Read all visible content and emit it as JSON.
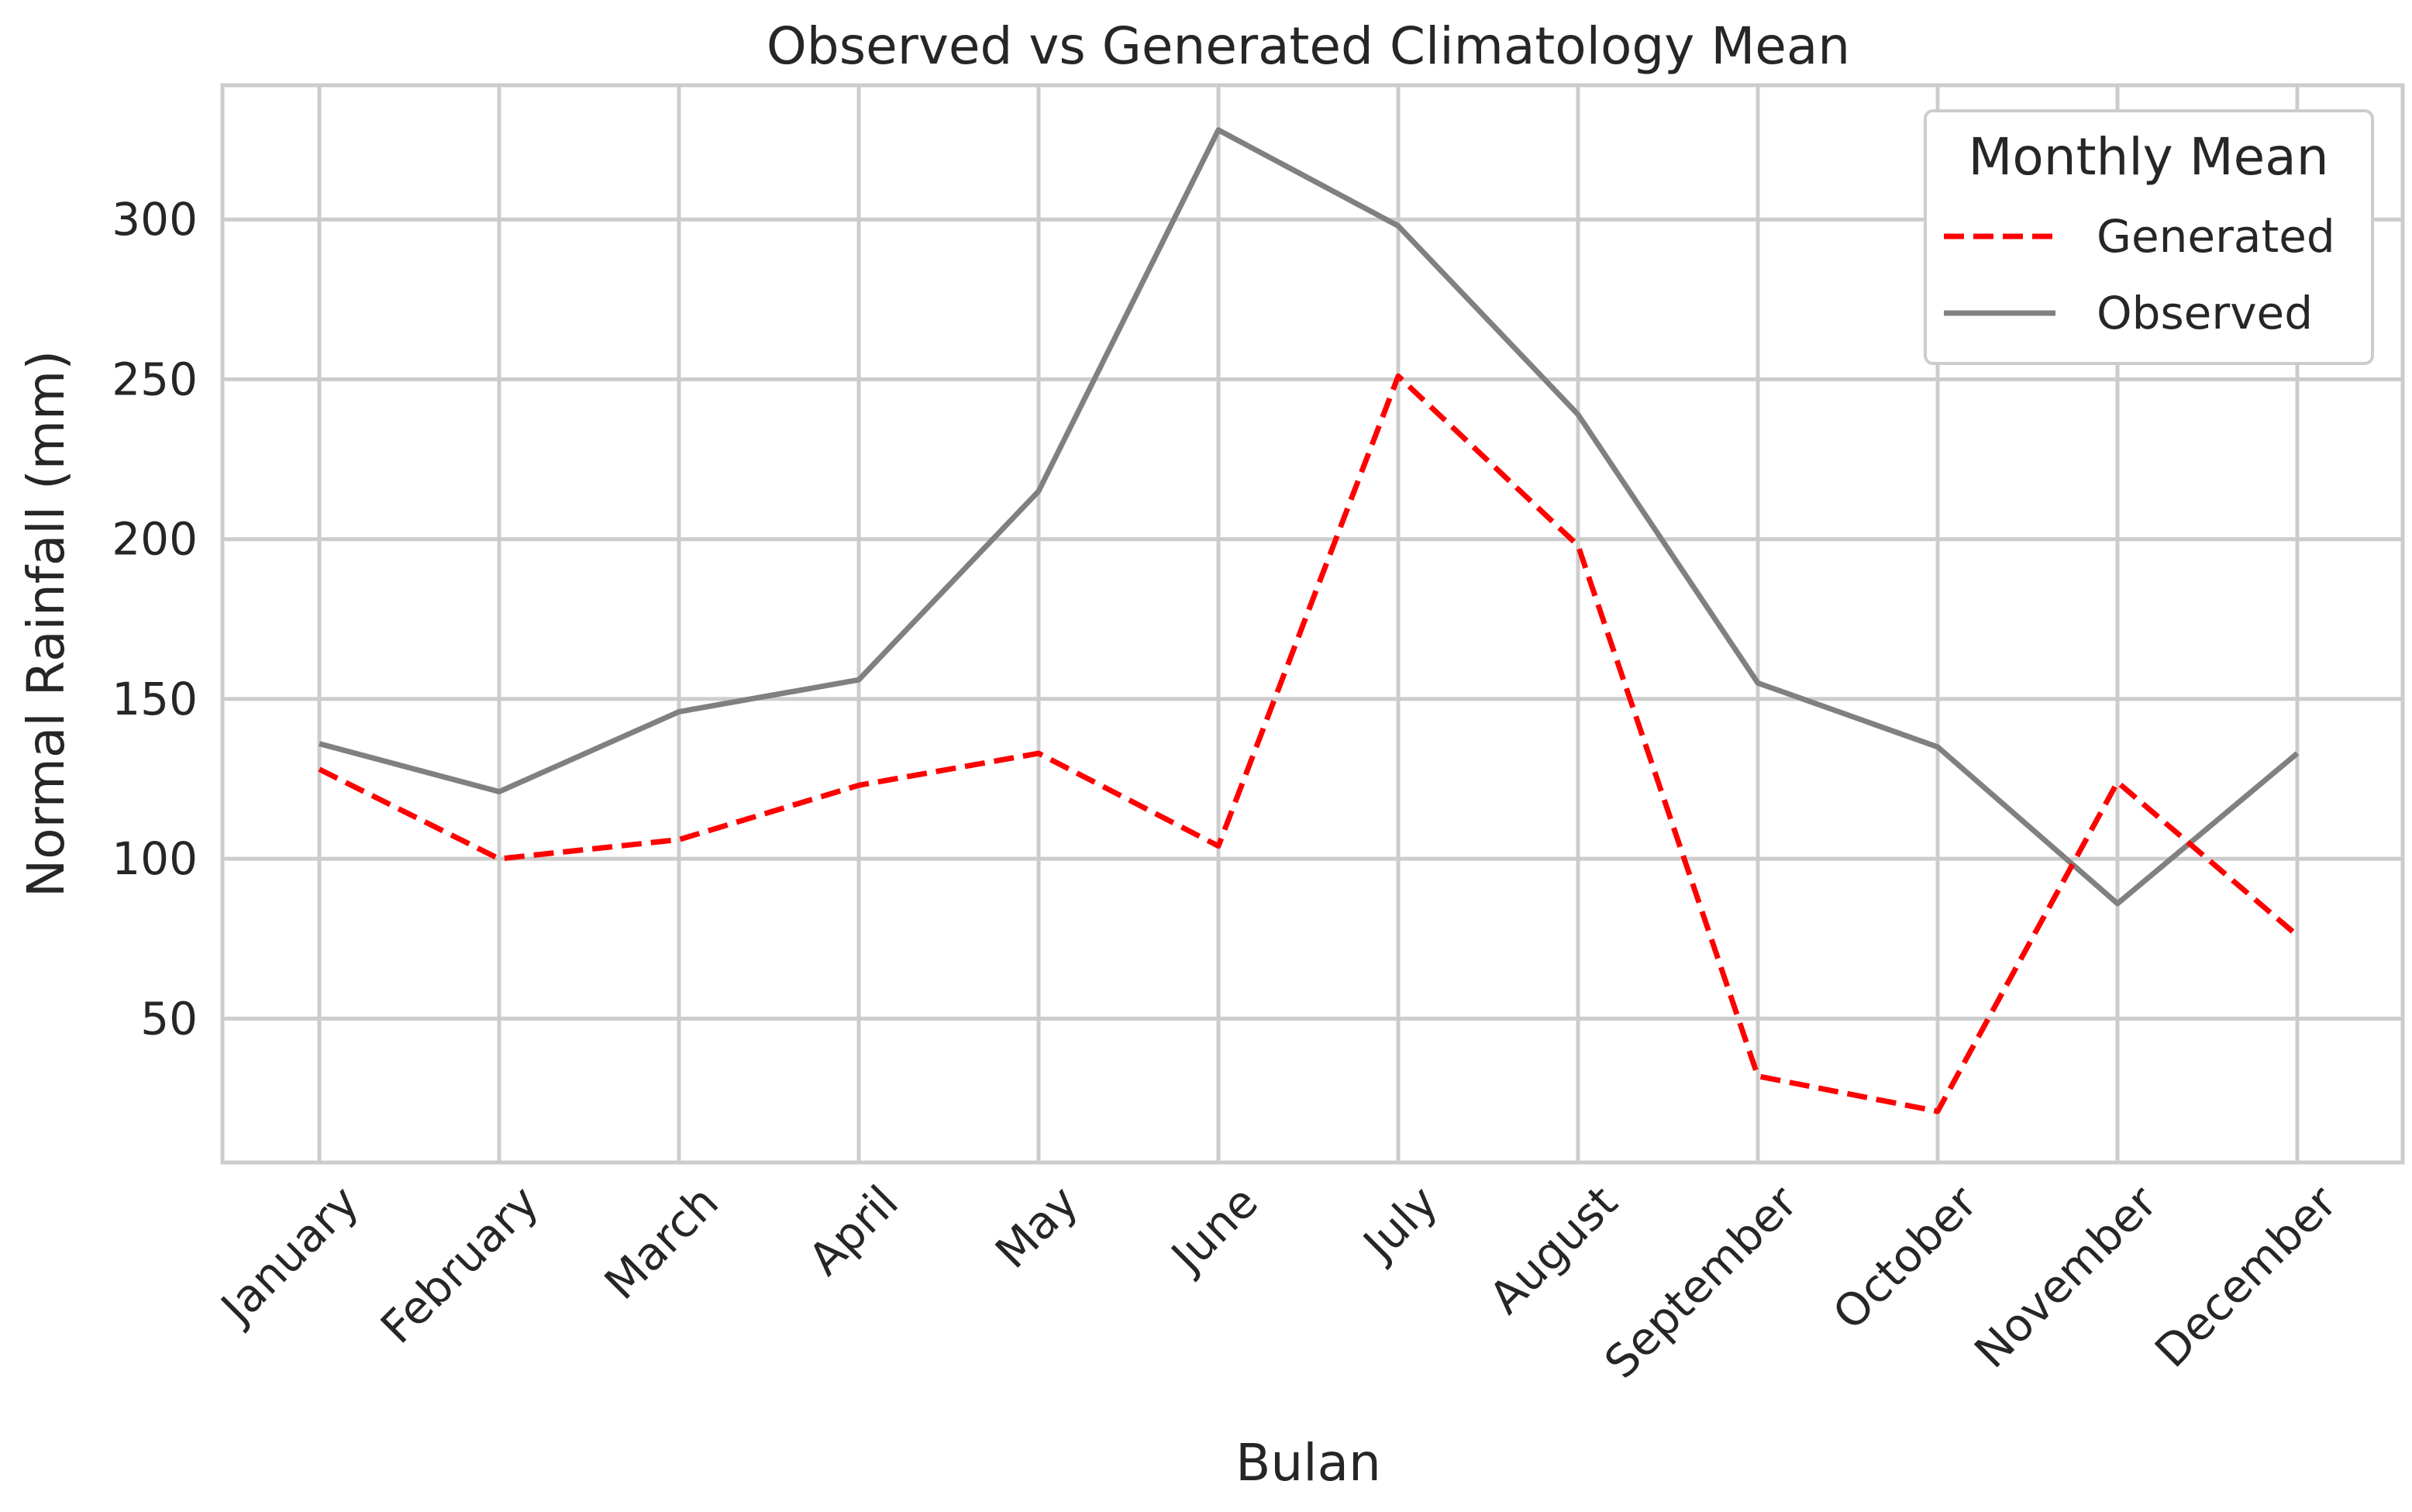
{
  "chart_data": {
    "type": "line",
    "title": "Observed vs Generated Climatology Mean",
    "xlabel": "Bulan",
    "ylabel": "Normal Rainfall (mm)",
    "categories": [
      "January",
      "February",
      "March",
      "April",
      "May",
      "June",
      "July",
      "August",
      "September",
      "October",
      "November",
      "December"
    ],
    "ylim": [
      5,
      342
    ],
    "yticks": [
      50,
      100,
      150,
      200,
      250,
      300
    ],
    "grid": true,
    "legend": {
      "title": "Monthly Mean",
      "position": "top-right"
    },
    "series": [
      {
        "name": "Generated",
        "color": "#ff0000",
        "style": "dashed",
        "values": [
          128,
          100,
          106,
          123,
          133,
          104,
          251,
          198,
          32,
          21,
          124,
          76
        ]
      },
      {
        "name": "Observed",
        "color": "#808080",
        "style": "solid",
        "values": [
          136,
          121,
          146,
          156,
          215,
          328,
          298,
          239,
          155,
          135,
          86,
          133
        ]
      }
    ]
  }
}
